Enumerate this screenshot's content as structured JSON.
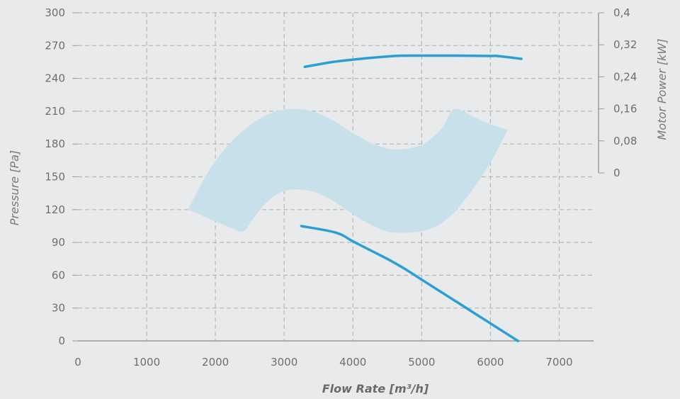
{
  "chart_data": {
    "type": "line",
    "xlabel": "Flow Rate [m³/h]",
    "ylabel": "Pressure [Pa]",
    "y2label": "Motor Power [kW]",
    "xlim": [
      0,
      7500
    ],
    "ylim": [
      0,
      300
    ],
    "y2lim": [
      0,
      0.4
    ],
    "grid": true,
    "colors": {
      "line": "#2a9fd6",
      "band": "#c7e0ea",
      "grid": "#b8b8b8",
      "axis": "#9a9a9a"
    },
    "x_ticks": [
      {
        "value": 0,
        "label": "0"
      },
      {
        "value": 1000,
        "label": "1000"
      },
      {
        "value": 2000,
        "label": "2000"
      },
      {
        "value": 3000,
        "label": "3000"
      },
      {
        "value": 4000,
        "label": "4000"
      },
      {
        "value": 5000,
        "label": "5000"
      },
      {
        "value": 6000,
        "label": "6000"
      },
      {
        "value": 7000,
        "label": "7000"
      }
    ],
    "y_ticks": [
      {
        "value": 0,
        "label": "0"
      },
      {
        "value": 30,
        "label": "30"
      },
      {
        "value": 60,
        "label": "60"
      },
      {
        "value": 90,
        "label": "90"
      },
      {
        "value": 120,
        "label": "120"
      },
      {
        "value": 150,
        "label": "150"
      },
      {
        "value": 180,
        "label": "180"
      },
      {
        "value": 210,
        "label": "210"
      },
      {
        "value": 240,
        "label": "240"
      },
      {
        "value": 270,
        "label": "270"
      },
      {
        "value": 300,
        "label": "300"
      }
    ],
    "y2_ticks": [
      {
        "value": 0,
        "label": "0"
      },
      {
        "value": 0.08,
        "label": "0,08"
      },
      {
        "value": 0.16,
        "label": "0,16"
      },
      {
        "value": 0.24,
        "label": "0,24"
      },
      {
        "value": 0.32,
        "label": "0,32"
      },
      {
        "value": 0.4,
        "label": "0,4"
      }
    ],
    "series": [
      {
        "axis": "y",
        "x": [
          3250,
          3750,
          4000,
          4250,
          4500,
          4750,
          5000,
          5250,
          5500,
          5750,
          6000,
          6200,
          6400
        ],
        "values": [
          105,
          99,
          91,
          83,
          75,
          66,
          56,
          46,
          36,
          26,
          16,
          8,
          0
        ]
      },
      {
        "axis": "y2",
        "x": [
          3300,
          3700,
          4000,
          4300,
          4600,
          4800,
          5000,
          5500,
          6000,
          6100,
          6450
        ],
        "values": [
          0.265,
          0.277,
          0.283,
          0.288,
          0.292,
          0.293,
          0.293,
          0.293,
          0.292,
          0.292,
          0.285
        ]
      }
    ],
    "band": {
      "description_upper": [
        [
          1600,
          120
        ],
        [
          1900,
          155
        ],
        [
          2200,
          180
        ],
        [
          2500,
          197
        ],
        [
          2800,
          208
        ],
        [
          3100,
          212
        ],
        [
          3400,
          210
        ],
        [
          3700,
          202
        ],
        [
          4000,
          190
        ],
        [
          4300,
          180
        ],
        [
          4600,
          175
        ],
        [
          4900,
          177
        ],
        [
          5100,
          183
        ],
        [
          5300,
          195
        ],
        [
          5480,
          212
        ],
        [
          5750,
          205
        ],
        [
          6000,
          198
        ],
        [
          6250,
          193
        ]
      ],
      "description_lower": [
        [
          6250,
          193
        ],
        [
          6000,
          163
        ],
        [
          5700,
          135
        ],
        [
          5400,
          113
        ],
        [
          5100,
          102
        ],
        [
          4800,
          99
        ],
        [
          4500,
          100
        ],
        [
          4200,
          108
        ],
        [
          3900,
          120
        ],
        [
          3600,
          132
        ],
        [
          3300,
          138
        ],
        [
          3000,
          137
        ],
        [
          2750,
          127
        ],
        [
          2550,
          112
        ],
        [
          2400,
          100
        ],
        [
          2200,
          104
        ],
        [
          1900,
          112
        ],
        [
          1600,
          120
        ]
      ]
    }
  }
}
